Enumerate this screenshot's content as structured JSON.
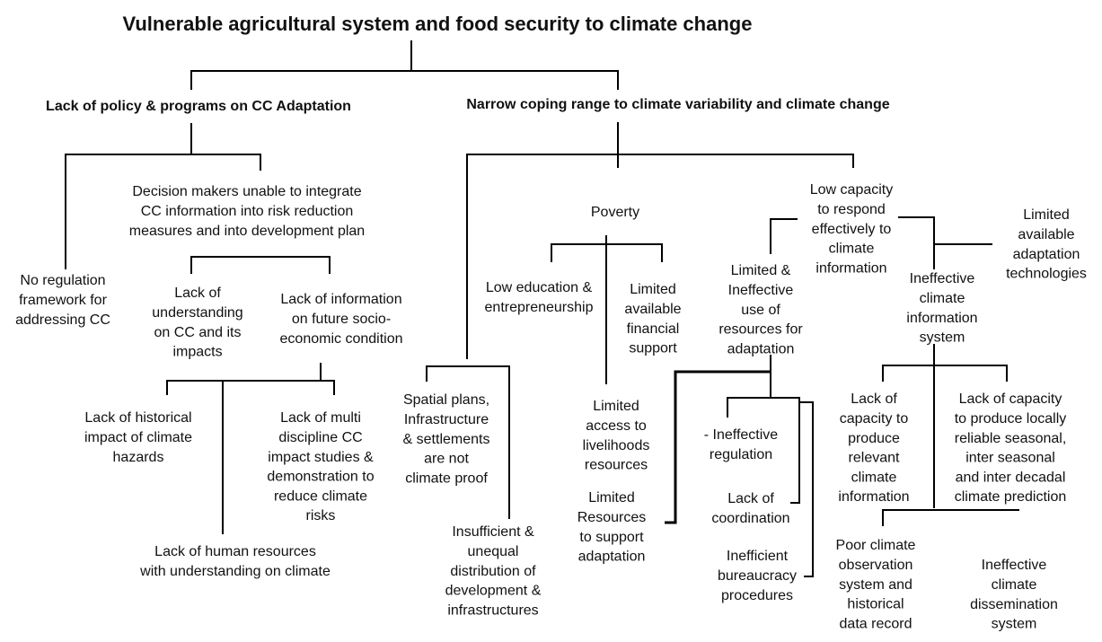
{
  "title": "Vulnerable agricultural system and food security to climate change",
  "nodes": [
    {
      "lines": [
        "Lack of policy & programs on CC Adaptation"
      ]
    },
    {
      "lines": [
        "Narrow coping range to climate variability and climate change"
      ]
    },
    {
      "lines": [
        "Decision makers unable to integrate",
        "CC information into risk reduction",
        "measures and into development plan"
      ]
    },
    {
      "lines": [
        "No regulation",
        "framework for",
        "addressing CC"
      ]
    },
    {
      "lines": [
        "Lack of",
        "understanding",
        "on CC and its",
        "impacts"
      ]
    },
    {
      "lines": [
        "Lack of information",
        "on future socio-",
        "economic condition"
      ]
    },
    {
      "lines": [
        "Lack of historical",
        "impact of climate",
        "hazards"
      ]
    },
    {
      "lines": [
        "Lack of multi",
        "discipline CC",
        "impact studies &",
        "demonstration to",
        "reduce climate",
        "risks"
      ]
    },
    {
      "lines": [
        "Lack of human resources",
        "with understanding on climate"
      ]
    },
    {
      "lines": [
        "Poverty"
      ]
    },
    {
      "lines": [
        "Low education &",
        "entrepreneurship"
      ]
    },
    {
      "lines": [
        "Limited",
        "available",
        "financial",
        "support"
      ]
    },
    {
      "lines": [
        "Spatial plans,",
        "Infrastructure",
        "& settlements",
        "are not",
        "climate proof"
      ]
    },
    {
      "lines": [
        "Limited",
        "access to",
        "livelihoods",
        "resources"
      ]
    },
    {
      "lines": [
        "Insufficient &",
        "unequal",
        "distribution of",
        "development &",
        "infrastructures"
      ]
    },
    {
      "lines": [
        "Limited",
        "Resources",
        "to support",
        "adaptation"
      ]
    },
    {
      "lines": [
        "Low capacity",
        "to respond",
        "effectively to",
        "climate",
        "information"
      ]
    },
    {
      "lines": [
        "Limited",
        "available",
        "adaptation",
        "technologies"
      ]
    },
    {
      "lines": [
        "Limited &",
        "Ineffective",
        "use of",
        "resources for",
        "adaptation"
      ]
    },
    {
      "lines": [
        "Ineffective",
        "climate",
        "information",
        "system"
      ]
    },
    {
      "lines": [
        "- Ineffective",
        "regulation"
      ]
    },
    {
      "lines": [
        "Lack of",
        "coordination"
      ]
    },
    {
      "lines": [
        "Inefficient",
        "bureaucracy",
        "procedures"
      ]
    },
    {
      "lines": [
        "Lack of",
        "capacity to",
        "produce",
        "relevant",
        "climate",
        "information"
      ]
    },
    {
      "lines": [
        "Lack of capacity",
        "to produce locally",
        "reliable seasonal,",
        "inter seasonal",
        "and inter decadal",
        "climate prediction"
      ]
    },
    {
      "lines": [
        "Poor climate",
        "observation",
        "system and",
        "historical",
        "data record"
      ]
    },
    {
      "lines": [
        "Ineffective",
        "climate",
        "dissemination",
        "system"
      ]
    }
  ]
}
